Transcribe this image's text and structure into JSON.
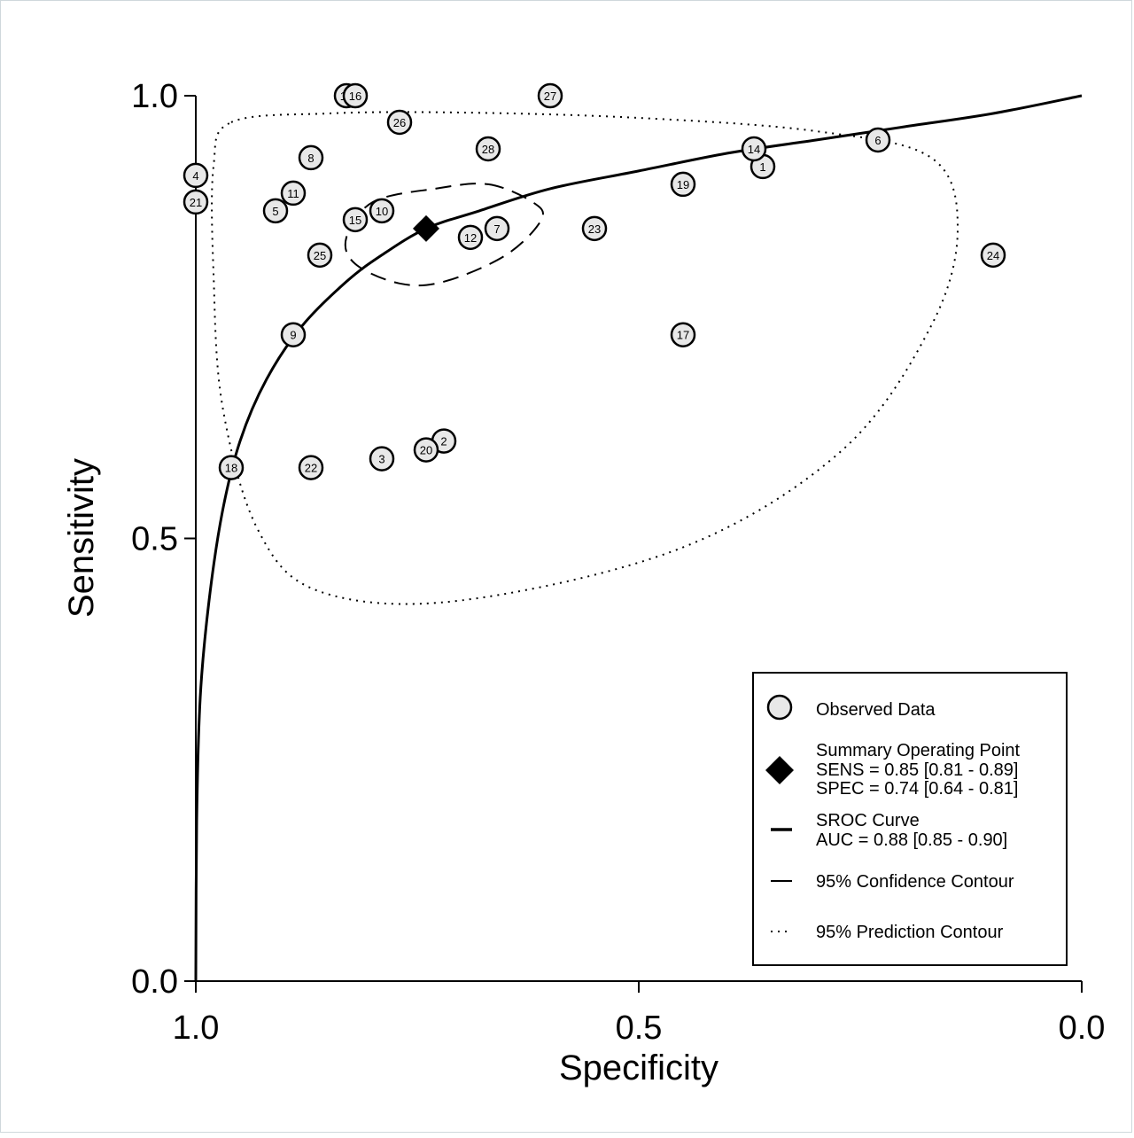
{
  "chart_data": {
    "type": "scatter",
    "xlabel": "Specificity",
    "ylabel": "Sensitivity",
    "x_reversed": true,
    "xlim": [
      0.0,
      1.0
    ],
    "ylim": [
      0.0,
      1.0
    ],
    "xticks": [
      {
        "value": 1.0,
        "label": "1.0"
      },
      {
        "value": 0.5,
        "label": "0.5"
      },
      {
        "value": 0.0,
        "label": "0.0"
      }
    ],
    "yticks": [
      {
        "value": 0.0,
        "label": "0.0"
      },
      {
        "value": 0.5,
        "label": "0.5"
      },
      {
        "value": 1.0,
        "label": "1.0"
      }
    ],
    "grid": false,
    "legend_position": "bottom-right",
    "observed_data": [
      {
        "id": "1",
        "spec": 0.36,
        "sens": 0.92
      },
      {
        "id": "2",
        "spec": 0.72,
        "sens": 0.61
      },
      {
        "id": "3",
        "spec": 0.79,
        "sens": 0.59
      },
      {
        "id": "4",
        "spec": 1.0,
        "sens": 0.91
      },
      {
        "id": "5",
        "spec": 0.91,
        "sens": 0.87
      },
      {
        "id": "6",
        "spec": 0.23,
        "sens": 0.95
      },
      {
        "id": "7",
        "spec": 0.66,
        "sens": 0.85
      },
      {
        "id": "8",
        "spec": 0.87,
        "sens": 0.93
      },
      {
        "id": "9",
        "spec": 0.89,
        "sens": 0.73
      },
      {
        "id": "10",
        "spec": 0.79,
        "sens": 0.87
      },
      {
        "id": "11",
        "spec": 0.89,
        "sens": 0.89
      },
      {
        "id": "12",
        "spec": 0.69,
        "sens": 0.84
      },
      {
        "id": "13",
        "spec": 0.83,
        "sens": 1.0
      },
      {
        "id": "14",
        "spec": 0.37,
        "sens": 0.94
      },
      {
        "id": "15",
        "spec": 0.82,
        "sens": 0.86
      },
      {
        "id": "16",
        "spec": 0.82,
        "sens": 1.0
      },
      {
        "id": "17",
        "spec": 0.45,
        "sens": 0.73
      },
      {
        "id": "18",
        "spec": 0.96,
        "sens": 0.58
      },
      {
        "id": "19",
        "spec": 0.45,
        "sens": 0.9
      },
      {
        "id": "20",
        "spec": 0.74,
        "sens": 0.6
      },
      {
        "id": "21",
        "spec": 1.0,
        "sens": 0.88
      },
      {
        "id": "22",
        "spec": 0.87,
        "sens": 0.58
      },
      {
        "id": "23",
        "spec": 0.55,
        "sens": 0.85
      },
      {
        "id": "24",
        "spec": 0.1,
        "sens": 0.82
      },
      {
        "id": "25",
        "spec": 0.86,
        "sens": 0.82
      },
      {
        "id": "26",
        "spec": 0.77,
        "sens": 0.97
      },
      {
        "id": "27",
        "spec": 0.6,
        "sens": 1.0
      },
      {
        "id": "28",
        "spec": 0.67,
        "sens": 0.94
      }
    ],
    "summary_point": {
      "spec": 0.74,
      "sens": 0.85
    },
    "sroc_curve": [
      {
        "spec": 1.0,
        "sens": 0.0
      },
      {
        "spec": 0.999,
        "sens": 0.18
      },
      {
        "spec": 0.995,
        "sens": 0.32
      },
      {
        "spec": 0.985,
        "sens": 0.43
      },
      {
        "spec": 0.97,
        "sens": 0.53
      },
      {
        "spec": 0.95,
        "sens": 0.61
      },
      {
        "spec": 0.92,
        "sens": 0.68
      },
      {
        "spec": 0.88,
        "sens": 0.74
      },
      {
        "spec": 0.83,
        "sens": 0.79
      },
      {
        "spec": 0.79,
        "sens": 0.82
      },
      {
        "spec": 0.74,
        "sens": 0.85
      },
      {
        "spec": 0.68,
        "sens": 0.87
      },
      {
        "spec": 0.6,
        "sens": 0.895
      },
      {
        "spec": 0.5,
        "sens": 0.915
      },
      {
        "spec": 0.4,
        "sens": 0.935
      },
      {
        "spec": 0.3,
        "sens": 0.95
      },
      {
        "spec": 0.2,
        "sens": 0.965
      },
      {
        "spec": 0.1,
        "sens": 0.98
      },
      {
        "spec": 0.0,
        "sens": 1.0
      }
    ],
    "confidence_contour": [
      {
        "spec": 0.67,
        "sens": 0.9
      },
      {
        "spec": 0.62,
        "sens": 0.88
      },
      {
        "spec": 0.61,
        "sens": 0.86
      },
      {
        "spec": 0.65,
        "sens": 0.82
      },
      {
        "spec": 0.72,
        "sens": 0.79
      },
      {
        "spec": 0.77,
        "sens": 0.788
      },
      {
        "spec": 0.82,
        "sens": 0.81
      },
      {
        "spec": 0.83,
        "sens": 0.84
      },
      {
        "spec": 0.8,
        "sens": 0.88
      },
      {
        "spec": 0.73,
        "sens": 0.895
      },
      {
        "spec": 0.67,
        "sens": 0.9
      }
    ],
    "prediction_contour": [
      {
        "spec": 0.96,
        "sens": 0.97
      },
      {
        "spec": 0.85,
        "sens": 0.98
      },
      {
        "spec": 0.7,
        "sens": 0.981
      },
      {
        "spec": 0.5,
        "sens": 0.975
      },
      {
        "spec": 0.3,
        "sens": 0.96
      },
      {
        "spec": 0.17,
        "sens": 0.93
      },
      {
        "spec": 0.14,
        "sens": 0.85
      },
      {
        "spec": 0.17,
        "sens": 0.74
      },
      {
        "spec": 0.27,
        "sens": 0.6
      },
      {
        "spec": 0.45,
        "sens": 0.49
      },
      {
        "spec": 0.7,
        "sens": 0.43
      },
      {
        "spec": 0.86,
        "sens": 0.44
      },
      {
        "spec": 0.93,
        "sens": 0.51
      },
      {
        "spec": 0.97,
        "sens": 0.65
      },
      {
        "spec": 0.98,
        "sens": 0.8
      },
      {
        "spec": 0.98,
        "sens": 0.92
      },
      {
        "spec": 0.96,
        "sens": 0.97
      }
    ],
    "legend": {
      "observed": "Observed Data",
      "summary_title": "Summary Operating Point",
      "summary_sens": "SENS = 0.85 [0.81 - 0.89]",
      "summary_spec": "SPEC = 0.74 [0.64 - 0.81]",
      "sroc_title": "SROC Curve",
      "sroc_auc": "AUC = 0.88 [0.85 - 0.90]",
      "confidence": "95% Confidence Contour",
      "prediction": "95% Prediction Contour"
    }
  }
}
